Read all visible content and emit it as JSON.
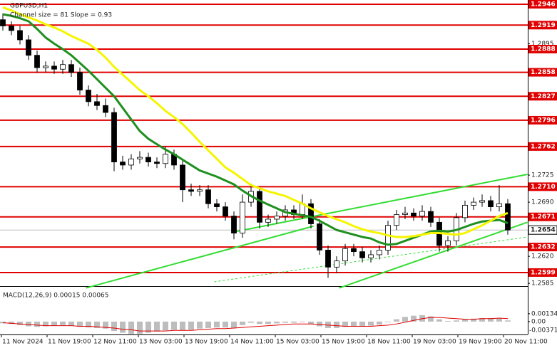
{
  "chart_data": {
    "type": "candlestick",
    "title": "GBPUSD,H1",
    "subtitle": "Channel size = 81 Slope = 0.93",
    "x_labels": [
      "11 Nov 2024",
      "11 Nov 19:00",
      "12 Nov 11:00",
      "13 Nov 03:00",
      "13 Nov 19:00",
      "14 Nov 11:00",
      "15 Nov 03:00",
      "15 Nov 19:00",
      "18 Nov 11:00",
      "19 Nov 03:00",
      "19 Nov 19:00",
      "20 Nov 11:00"
    ],
    "ohlc": [
      [
        1.2926,
        1.2934,
        1.2912,
        1.2918
      ],
      [
        1.2918,
        1.2924,
        1.2906,
        1.2912
      ],
      [
        1.2912,
        1.2918,
        1.2894,
        1.29
      ],
      [
        1.29,
        1.2906,
        1.2874,
        1.288
      ],
      [
        1.288,
        1.2886,
        1.2858,
        1.2864
      ],
      [
        1.2864,
        1.2872,
        1.2858,
        1.2866
      ],
      [
        1.2866,
        1.2872,
        1.2856,
        1.2862
      ],
      [
        1.2862,
        1.2874,
        1.2856,
        1.2868
      ],
      [
        1.2868,
        1.2874,
        1.2852,
        1.2858
      ],
      [
        1.2858,
        1.2864,
        1.2829,
        1.2835
      ],
      [
        1.2835,
        1.2841,
        1.2814,
        1.282
      ],
      [
        1.282,
        1.283,
        1.2809,
        1.2815
      ],
      [
        1.2815,
        1.2824,
        1.28,
        1.2806
      ],
      [
        1.2806,
        1.2812,
        1.273,
        1.2742
      ],
      [
        1.2742,
        1.275,
        1.2732,
        1.2738
      ],
      [
        1.2738,
        1.2752,
        1.2732,
        1.2746
      ],
      [
        1.2746,
        1.2756,
        1.274,
        1.2748
      ],
      [
        1.2748,
        1.2754,
        1.2736,
        1.2742
      ],
      [
        1.2742,
        1.2748,
        1.2734,
        1.274
      ],
      [
        1.274,
        1.2762,
        1.2734,
        1.2752
      ],
      [
        1.2752,
        1.2758,
        1.2732,
        1.2738
      ],
      [
        1.2738,
        1.2744,
        1.269,
        1.2706
      ],
      [
        1.2706,
        1.2714,
        1.2698,
        1.2704
      ],
      [
        1.2704,
        1.2712,
        1.2698,
        1.2706
      ],
      [
        1.2706,
        1.2712,
        1.2682,
        1.2688
      ],
      [
        1.2688,
        1.2694,
        1.2678,
        1.2684
      ],
      [
        1.2684,
        1.269,
        1.2666,
        1.2672
      ],
      [
        1.2672,
        1.2678,
        1.2642,
        1.265
      ],
      [
        1.265,
        1.27,
        1.2644,
        1.269
      ],
      [
        1.269,
        1.2714,
        1.2684,
        1.2704
      ],
      [
        1.2704,
        1.271,
        1.2656,
        1.2664
      ],
      [
        1.2664,
        1.2674,
        1.2658,
        1.2668
      ],
      [
        1.2668,
        1.2678,
        1.2662,
        1.2672
      ],
      [
        1.2672,
        1.2686,
        1.2666,
        1.268
      ],
      [
        1.268,
        1.2686,
        1.2668,
        1.2674
      ],
      [
        1.2674,
        1.27,
        1.2668,
        1.2688
      ],
      [
        1.2688,
        1.2694,
        1.2656,
        1.2662
      ],
      [
        1.2662,
        1.2668,
        1.2622,
        1.2628
      ],
      [
        1.2628,
        1.2634,
        1.2592,
        1.2606
      ],
      [
        1.2606,
        1.262,
        1.2598,
        1.2614
      ],
      [
        1.2614,
        1.2636,
        1.2608,
        1.263
      ],
      [
        1.263,
        1.2636,
        1.262,
        1.2626
      ],
      [
        1.2626,
        1.2632,
        1.2612,
        1.2618
      ],
      [
        1.2618,
        1.2628,
        1.2612,
        1.2622
      ],
      [
        1.2622,
        1.2634,
        1.2616,
        1.2628
      ],
      [
        1.2628,
        1.2666,
        1.2622,
        1.266
      ],
      [
        1.266,
        1.268,
        1.2654,
        1.2674
      ],
      [
        1.2674,
        1.2684,
        1.2668,
        1.2676
      ],
      [
        1.2676,
        1.2682,
        1.2666,
        1.2672
      ],
      [
        1.2672,
        1.2686,
        1.2666,
        1.2678
      ],
      [
        1.2678,
        1.2684,
        1.2658,
        1.2664
      ],
      [
        1.2664,
        1.267,
        1.2626,
        1.2634
      ],
      [
        1.2634,
        1.2646,
        1.2626,
        1.264
      ],
      [
        1.264,
        1.2676,
        1.2634,
        1.267
      ],
      [
        1.267,
        1.2692,
        1.2664,
        1.2686
      ],
      [
        1.2686,
        1.2696,
        1.268,
        1.269
      ],
      [
        1.269,
        1.27,
        1.2684,
        1.2692
      ],
      [
        1.2692,
        1.2698,
        1.2678,
        1.2684
      ],
      [
        1.2684,
        1.2712,
        1.2678,
        1.2688
      ],
      [
        1.2688,
        1.2694,
        1.2648,
        1.2654
      ]
    ],
    "moving_averages": [
      {
        "color": "#1f8f1f",
        "values": [
          1.2933,
          1.2931,
          1.2928,
          1.2924,
          1.2914,
          1.2903,
          1.2895,
          1.2888,
          1.288,
          1.287,
          1.286,
          1.2849,
          1.2838,
          1.2827,
          1.2812,
          1.2797,
          1.2782,
          1.2772,
          1.2765,
          1.2758,
          1.2752,
          1.2745,
          1.2738,
          1.2731,
          1.2727,
          1.2723,
          1.2718,
          1.2713,
          1.2705,
          1.2698,
          1.2692,
          1.2687,
          1.2682,
          1.2677,
          1.2675,
          1.2673,
          1.2671,
          1.2666,
          1.266,
          1.2654,
          1.2651,
          1.2648,
          1.2645,
          1.2643,
          1.2638,
          1.2635,
          1.2636,
          1.264,
          1.2644,
          1.2648,
          1.2652,
          1.2653,
          1.2652,
          1.2654,
          1.2658,
          1.2662,
          1.2665,
          1.2666,
          1.2667,
          1.2663
        ]
      },
      {
        "color": "#f5f500",
        "values": [
          1.2942,
          1.2938,
          1.2933,
          1.2929,
          1.2925,
          1.292,
          1.2916,
          1.2911,
          1.2905,
          1.29,
          1.2895,
          1.2887,
          1.2877,
          1.2865,
          1.2855,
          1.2845,
          1.2835,
          1.2827,
          1.2818,
          1.2808,
          1.28,
          1.2791,
          1.278,
          1.2768,
          1.2757,
          1.2746,
          1.2735,
          1.2728,
          1.272,
          1.2712,
          1.2708,
          1.2704,
          1.2701,
          1.2698,
          1.2693,
          1.2688,
          1.2682,
          1.2677,
          1.2672,
          1.2668,
          1.2664,
          1.2659,
          1.2655,
          1.2652,
          1.265,
          1.2647,
          1.2645,
          1.2645,
          1.2646,
          1.2648,
          1.265,
          1.265,
          1.2649,
          1.2648,
          1.265,
          1.2655,
          1.266,
          1.2666,
          1.2672,
          1.2676
        ]
      }
    ],
    "trend_lines": [
      {
        "color": "#33dd33",
        "x": [
          9.7,
          36.3
        ],
        "values": [
          1.2579,
          1.2659
        ]
      },
      {
        "color": "#33dd33",
        "x": [
          27.2,
          61.3
        ],
        "values": [
          1.2652,
          1.2726
        ]
      },
      {
        "color": "#33dd33",
        "x": [
          39.3,
          61.3
        ],
        "values": [
          1.2579,
          1.2664
        ]
      },
      {
        "color": "#33dd33",
        "dashed": true,
        "x": [
          24.7,
          61.3
        ],
        "values": [
          1.2587,
          1.2645
        ]
      }
    ],
    "ylim": [
      1.25833,
      1.29515
    ],
    "yticks": [
      1.2895,
      1.2725,
      {
        "value": 1.269,
        "label": "1.2690"
      },
      {
        "value": 1.262,
        "label": "1.2620"
      },
      1.2585
    ],
    "levels": [
      1.2946,
      1.2919,
      1.2888,
      1.2858,
      1.2827,
      1.2796,
      1.2762,
      {
        "value": 1.271,
        "label": "1.2710"
      },
      1.2671,
      1.2632,
      1.2599
    ],
    "level_color": "#e00000",
    "current_price": 1.2654,
    "macd": {
      "label": "MACD(12,26,9) 0.00015 0.00065",
      "histogram": [
        -0.0003,
        -0.0004,
        -0.0006,
        -0.0008,
        -0.0009,
        -0.0008,
        -0.0007,
        -0.0006,
        -0.0007,
        -0.0009,
        -0.001,
        -0.0011,
        -0.0012,
        -0.0016,
        -0.0019,
        -0.0021,
        -0.0021,
        -0.0019,
        -0.0017,
        -0.0015,
        -0.0014,
        -0.0015,
        -0.0014,
        -0.0012,
        -0.0011,
        -0.001,
        -0.001,
        -0.0011,
        -0.0006,
        -0.0002,
        -0.0004,
        -0.0004,
        -0.0003,
        -0.0002,
        -0.0002,
        -0.0001,
        -0.0004,
        -0.0008,
        -0.0011,
        -0.0011,
        -0.0009,
        -0.0008,
        -0.0008,
        -0.0007,
        -0.0005,
        -0.0001,
        0.0004,
        0.0008,
        0.001,
        0.0011,
        0.0009,
        0.0004,
        0.0001,
        0.0002,
        0.0004,
        0.0005,
        0.0006,
        0.0006,
        0.0006,
        0.0002
      ],
      "signal": [
        -0.0002,
        -0.0003,
        -0.0004,
        -0.0005,
        -0.0006,
        -0.0007,
        -0.0007,
        -0.0007,
        -0.0007,
        -0.0008,
        -0.0008,
        -0.0009,
        -0.001,
        -0.0011,
        -0.0013,
        -0.0014,
        -0.0016,
        -0.0016,
        -0.0016,
        -0.0016,
        -0.0015,
        -0.0015,
        -0.0015,
        -0.0014,
        -0.0013,
        -0.0012,
        -0.0012,
        -0.0011,
        -0.001,
        -0.0009,
        -0.0008,
        -0.0007,
        -0.0006,
        -0.0005,
        -0.0004,
        -0.0004,
        -0.0004,
        -0.0005,
        -0.0006,
        -0.0007,
        -0.0008,
        -0.0008,
        -0.0008,
        -0.0008,
        -0.0007,
        -0.0006,
        -0.0004,
        -0.0001,
        0.0002,
        0.0005,
        0.0007,
        0.0007,
        0.0006,
        0.0005,
        0.0004,
        0.0004,
        0.0005,
        0.0005,
        0.0006,
        0.0005
      ],
      "histogram_color": "#bdbdbd",
      "signal_color": "#e00000",
      "ylim": [
        -0.0022,
        0.0057
      ],
      "yticks": [
        0.00134,
        {
          "value": 0,
          "label": "0.00"
        }
      ],
      "min_label": -0.00371
    }
  }
}
